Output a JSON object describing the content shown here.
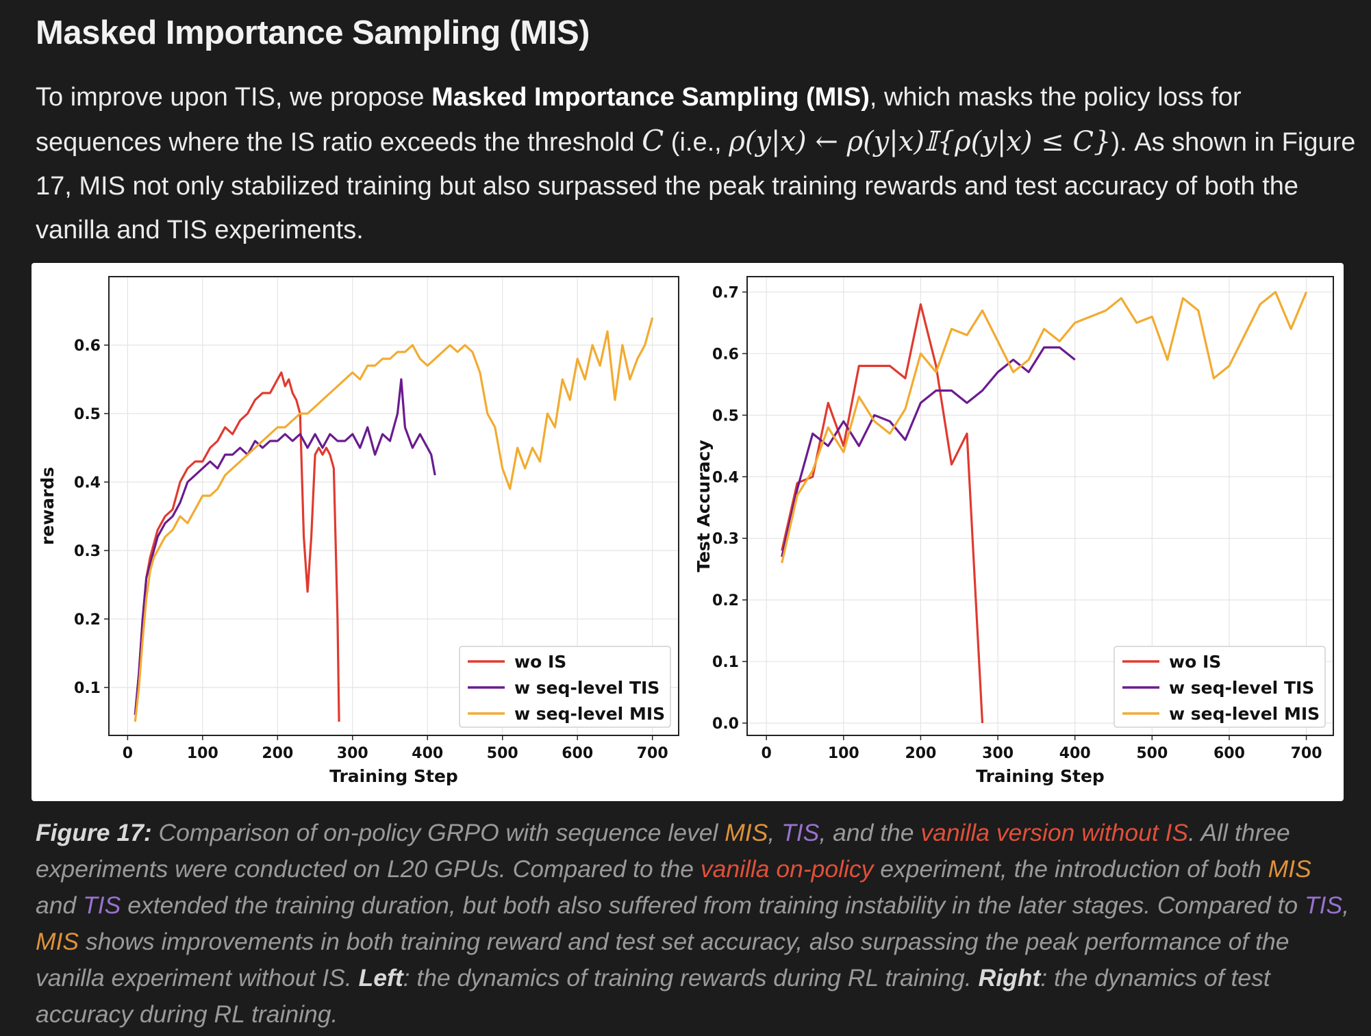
{
  "heading": "Masked Importance Sampling (MIS)",
  "paragraph": {
    "p1": "To improve upon TIS, we propose ",
    "bold": "Masked Importance Sampling (MIS)",
    "p2": ", which masks the policy loss for sequences where the IS ratio exceeds the threshold ",
    "C": "C",
    "p3": " (i.e., ",
    "formula": "ρ(y|x) ← ρ(y|x)𝕀{ρ(y|x) ≤ C}",
    "p4": "). As shown in Figure 17, MIS not only stabilized training but also surpassed the peak training rewards and test accuracy of both the vanilla and TIS experiments."
  },
  "caption": {
    "label": "Figure 17:",
    "t1": " Comparison of on-policy GRPO with sequence level ",
    "mis1": "MIS",
    "comma1": ", ",
    "tis1": "TIS",
    "t2": ", and the ",
    "wo1": "vanilla version without IS",
    "t3": ".  All three experiments were conducted on L20 GPUs. Compared to the ",
    "wo2": "vanilla on-policy",
    "t4": " experiment, the introduction of both ",
    "mis2": "MIS",
    "t5": " and ",
    "tis2": "TIS",
    "t6": " extended the training duration, but both also suffered from training instability in the later stages. Compared to ",
    "tis3": "TIS",
    "comma2": ", ",
    "mis3": "MIS",
    "t7": " shows  improvements in both training reward and test set accuracy, also surpassing the peak performance of the vanilla experiment without IS. ",
    "left": "Left",
    "t8": ":  the dynamics of training rewards during RL training. ",
    "right": "Right",
    "t9": ": the dynamics of  test accuracy during RL training."
  },
  "colors": {
    "wo": "#e03a2f",
    "tis": "#6a1b8f",
    "mis": "#f2ab30"
  },
  "chart_data": [
    {
      "type": "line",
      "xlabel": "Training Step",
      "ylabel": "rewards",
      "xlim": [
        -25,
        735
      ],
      "ylim": [
        0.03,
        0.7
      ],
      "xticks": [
        0,
        100,
        200,
        300,
        400,
        500,
        600,
        700
      ],
      "yticks": [
        0.1,
        0.2,
        0.3,
        0.4,
        0.5,
        0.6
      ],
      "grid": true,
      "legend": "lower-right",
      "series": [
        {
          "name": "wo IS",
          "color": "#e03a2f",
          "x": [
            10,
            15,
            20,
            25,
            30,
            35,
            40,
            50,
            60,
            70,
            80,
            90,
            100,
            110,
            120,
            130,
            140,
            150,
            160,
            170,
            180,
            190,
            200,
            205,
            210,
            215,
            220,
            225,
            230,
            235,
            240,
            245,
            250,
            255,
            260,
            265,
            270,
            275,
            280,
            282
          ],
          "y": [
            0.06,
            0.12,
            0.2,
            0.26,
            0.29,
            0.31,
            0.33,
            0.35,
            0.36,
            0.4,
            0.42,
            0.43,
            0.43,
            0.45,
            0.46,
            0.48,
            0.47,
            0.49,
            0.5,
            0.52,
            0.53,
            0.53,
            0.55,
            0.56,
            0.54,
            0.55,
            0.53,
            0.52,
            0.5,
            0.32,
            0.24,
            0.32,
            0.44,
            0.45,
            0.44,
            0.45,
            0.44,
            0.42,
            0.2,
            0.05
          ]
        },
        {
          "name": "w seq-level TIS",
          "color": "#6a1b8f",
          "x": [
            10,
            15,
            20,
            25,
            30,
            35,
            40,
            50,
            60,
            70,
            80,
            90,
            100,
            110,
            120,
            130,
            140,
            150,
            160,
            170,
            180,
            190,
            200,
            210,
            220,
            230,
            240,
            250,
            260,
            270,
            280,
            290,
            300,
            310,
            320,
            330,
            340,
            350,
            360,
            365,
            370,
            380,
            390,
            400,
            405,
            410
          ],
          "y": [
            0.06,
            0.12,
            0.2,
            0.26,
            0.28,
            0.3,
            0.32,
            0.34,
            0.35,
            0.37,
            0.4,
            0.41,
            0.42,
            0.43,
            0.42,
            0.44,
            0.44,
            0.45,
            0.44,
            0.46,
            0.45,
            0.46,
            0.46,
            0.47,
            0.46,
            0.47,
            0.45,
            0.47,
            0.45,
            0.47,
            0.46,
            0.46,
            0.47,
            0.45,
            0.48,
            0.44,
            0.47,
            0.46,
            0.5,
            0.55,
            0.48,
            0.45,
            0.47,
            0.45,
            0.44,
            0.41
          ]
        },
        {
          "name": "w seq-level MIS",
          "color": "#f2ab30",
          "x": [
            10,
            15,
            20,
            25,
            30,
            35,
            40,
            50,
            60,
            70,
            80,
            90,
            100,
            110,
            120,
            130,
            140,
            150,
            160,
            170,
            180,
            190,
            200,
            210,
            220,
            230,
            240,
            250,
            260,
            270,
            280,
            290,
            300,
            310,
            320,
            330,
            340,
            350,
            360,
            370,
            380,
            390,
            400,
            410,
            420,
            430,
            440,
            450,
            460,
            470,
            480,
            490,
            500,
            510,
            520,
            530,
            540,
            550,
            560,
            570,
            580,
            590,
            600,
            610,
            620,
            630,
            640,
            650,
            660,
            670,
            680,
            690,
            700
          ],
          "y": [
            0.05,
            0.1,
            0.17,
            0.23,
            0.27,
            0.29,
            0.3,
            0.32,
            0.33,
            0.35,
            0.34,
            0.36,
            0.38,
            0.38,
            0.39,
            0.41,
            0.42,
            0.43,
            0.44,
            0.45,
            0.46,
            0.47,
            0.48,
            0.48,
            0.49,
            0.5,
            0.5,
            0.51,
            0.52,
            0.53,
            0.54,
            0.55,
            0.56,
            0.55,
            0.57,
            0.57,
            0.58,
            0.58,
            0.59,
            0.59,
            0.6,
            0.58,
            0.57,
            0.58,
            0.59,
            0.6,
            0.59,
            0.6,
            0.59,
            0.56,
            0.5,
            0.48,
            0.42,
            0.39,
            0.45,
            0.42,
            0.45,
            0.43,
            0.5,
            0.48,
            0.55,
            0.52,
            0.58,
            0.55,
            0.6,
            0.57,
            0.62,
            0.52,
            0.6,
            0.55,
            0.58,
            0.6,
            0.64
          ]
        }
      ]
    },
    {
      "type": "line",
      "xlabel": "Training Step",
      "ylabel": "Test Accuracy",
      "xlim": [
        -25,
        735
      ],
      "ylim": [
        -0.02,
        0.725
      ],
      "xticks": [
        0,
        100,
        200,
        300,
        400,
        500,
        600,
        700
      ],
      "yticks": [
        0.0,
        0.1,
        0.2,
        0.3,
        0.4,
        0.5,
        0.6,
        0.7
      ],
      "grid": true,
      "legend": "lower-right",
      "series": [
        {
          "name": "wo IS",
          "color": "#e03a2f",
          "x": [
            20,
            40,
            60,
            80,
            100,
            120,
            140,
            160,
            180,
            200,
            220,
            240,
            260,
            280
          ],
          "y": [
            0.28,
            0.39,
            0.4,
            0.52,
            0.45,
            0.58,
            0.58,
            0.58,
            0.56,
            0.68,
            0.58,
            0.42,
            0.47,
            0.0
          ]
        },
        {
          "name": "w seq-level TIS",
          "color": "#6a1b8f",
          "x": [
            20,
            40,
            60,
            80,
            100,
            120,
            140,
            160,
            180,
            200,
            220,
            240,
            260,
            280,
            300,
            320,
            340,
            360,
            380,
            400
          ],
          "y": [
            0.27,
            0.38,
            0.47,
            0.45,
            0.49,
            0.45,
            0.5,
            0.49,
            0.46,
            0.52,
            0.54,
            0.54,
            0.52,
            0.54,
            0.57,
            0.59,
            0.57,
            0.61,
            0.61,
            0.59
          ]
        },
        {
          "name": "w seq-level MIS",
          "color": "#f2ab30",
          "x": [
            20,
            40,
            60,
            80,
            100,
            120,
            140,
            160,
            180,
            200,
            220,
            240,
            260,
            280,
            300,
            320,
            340,
            360,
            380,
            400,
            420,
            440,
            460,
            480,
            500,
            520,
            540,
            560,
            580,
            600,
            620,
            640,
            660,
            680,
            700
          ],
          "y": [
            0.26,
            0.37,
            0.41,
            0.48,
            0.44,
            0.53,
            0.49,
            0.47,
            0.51,
            0.6,
            0.57,
            0.64,
            0.63,
            0.67,
            0.62,
            0.57,
            0.59,
            0.64,
            0.62,
            0.65,
            0.66,
            0.67,
            0.69,
            0.65,
            0.66,
            0.59,
            0.69,
            0.67,
            0.56,
            0.58,
            0.63,
            0.68,
            0.7,
            0.64,
            0.7
          ]
        }
      ]
    }
  ]
}
